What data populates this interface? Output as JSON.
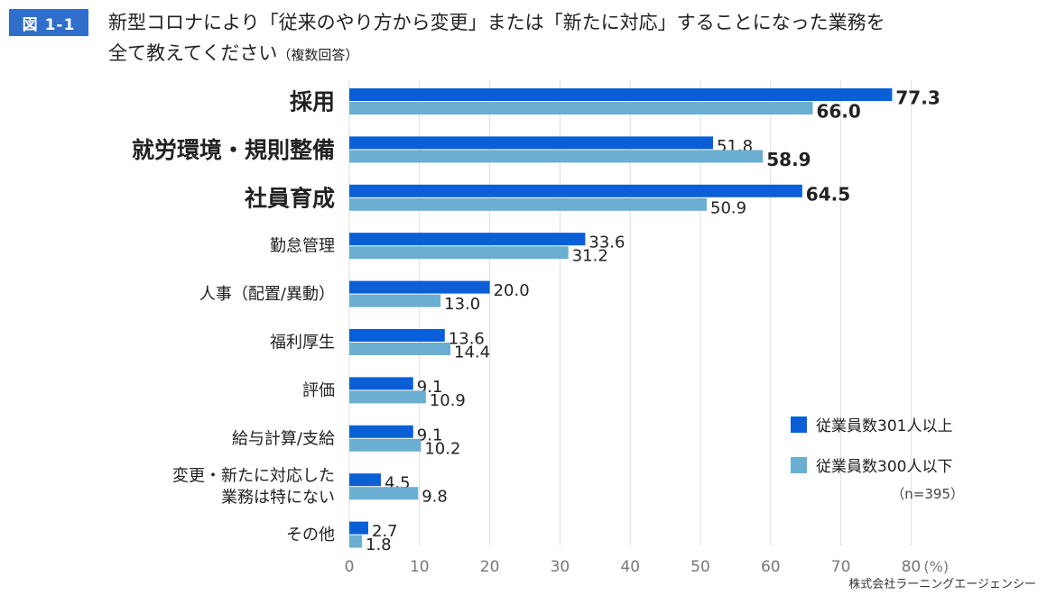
{
  "figure_label": "図 1-1",
  "title_line1": "新型コロナにより「従来のやり方から変更」または「新たに対応」することになった業務を",
  "title_line2": "全て教えてください",
  "title_note": "（複数回答）",
  "source": "株式会社ラーニングエージェンシー",
  "colors": {
    "series1": "#0a5fd6",
    "series2": "#6aaed2",
    "grid": "#dddddd",
    "axis_text": "#777777",
    "badge": "#2f6fc9"
  },
  "chart_data": {
    "type": "bar",
    "orientation": "horizontal",
    "title": "新型コロナにより「従来のやり方から変更」または「新たに対応」することになった業務を全て教えてください",
    "categories": [
      "採用",
      "就労環境・規則整備",
      "社員育成",
      "勤怠管理",
      "人事（配置/異動）",
      "福利厚生",
      "評価",
      "給与計算/支給",
      "変更・新たに対応した業務は特にない",
      "その他"
    ],
    "category_lines": [
      [
        "採用"
      ],
      [
        "就労環境・規則整備"
      ],
      [
        "社員育成"
      ],
      [
        "勤怠管理"
      ],
      [
        "人事（配置/異動）"
      ],
      [
        "福利厚生"
      ],
      [
        "評価"
      ],
      [
        "給与計算/支給"
      ],
      [
        "変更・新たに対応した",
        "業務は特にない"
      ],
      [
        "その他"
      ]
    ],
    "category_emphasis": [
      true,
      true,
      true,
      false,
      false,
      false,
      false,
      false,
      false,
      false
    ],
    "series": [
      {
        "name": "従業員数301人以上",
        "values": [
          77.3,
          51.8,
          64.5,
          33.6,
          20.0,
          13.6,
          9.1,
          9.1,
          4.5,
          2.7
        ],
        "labels": [
          "77.3",
          "51.8",
          "64.5",
          "33.6",
          "20.0",
          "13.6",
          "9.1",
          "9.1",
          "4.5",
          "2.7"
        ],
        "label_bold": [
          true,
          false,
          true,
          false,
          false,
          false,
          false,
          false,
          false,
          false
        ]
      },
      {
        "name": "従業員数300人以下",
        "values": [
          66.0,
          58.9,
          50.9,
          31.2,
          13.0,
          14.4,
          10.9,
          10.2,
          9.8,
          1.8
        ],
        "labels": [
          "66.0",
          "58.9",
          "50.9",
          "31.2",
          "13.0",
          "14.4",
          "10.9",
          "10.2",
          "9.8",
          "1.8"
        ],
        "label_bold": [
          true,
          true,
          false,
          false,
          false,
          false,
          false,
          false,
          false,
          false
        ]
      }
    ],
    "x_ticks": [
      "0",
      "10",
      "20",
      "30",
      "40",
      "50",
      "60",
      "70",
      "80"
    ],
    "x_unit": "(%)",
    "xlim": [
      0,
      80
    ],
    "grid": true,
    "legend_position": "right",
    "sample_note": "（n=395）"
  }
}
